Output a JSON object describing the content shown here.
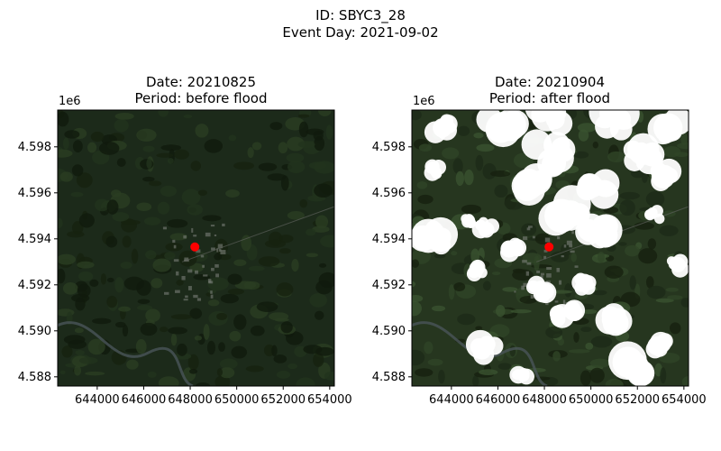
{
  "figure": {
    "id_line": "ID: SBYC3_28",
    "event_line": "Event Day: 2021-09-02"
  },
  "panels": [
    {
      "date_line": "Date: 20210825",
      "period_line": "Period: before flood",
      "clouds": false
    },
    {
      "date_line": "Date: 20210904",
      "period_line": "Period: after flood",
      "clouds": true
    }
  ],
  "axes": {
    "y_offset_label": "1e6",
    "y_ticks": [
      "4.598",
      "4.596",
      "4.594",
      "4.592",
      "4.590",
      "4.588"
    ],
    "x_ticks": [
      "644000",
      "646000",
      "648000",
      "650000",
      "652000",
      "654000"
    ],
    "x_range": [
      642300,
      654200
    ],
    "y_range": [
      4587600,
      4599600
    ],
    "x_tick_values": [
      644000,
      646000,
      648000,
      650000,
      652000,
      654000
    ],
    "y_tick_values": [
      4598000,
      4596000,
      4594000,
      4592000,
      4590000,
      4588000
    ]
  },
  "marker": {
    "x": 648200,
    "y": 4593650,
    "color": "#ff0000"
  },
  "colors": {
    "land_dark": "#1c2a1a",
    "vegetation": "#25381f",
    "cloud": "#ffffff",
    "river": "#4a5559"
  }
}
